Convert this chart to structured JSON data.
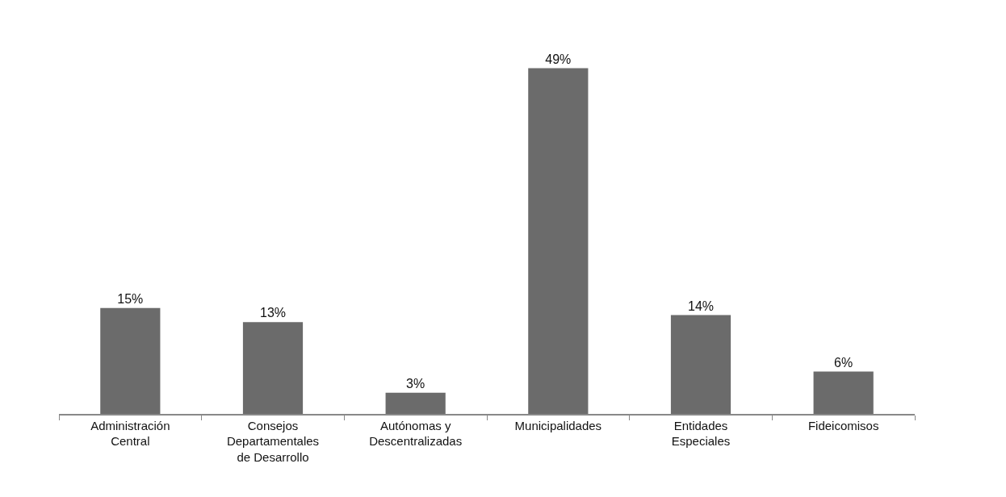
{
  "chart_data": {
    "type": "bar",
    "categories": [
      "Administración Central",
      "Consejos Departamentales de Desarrollo",
      "Autónomas y Descentralizadas",
      "Municipalidades",
      "Entidades Especiales",
      "Fideicomisos"
    ],
    "values": [
      15,
      13,
      3,
      49,
      14,
      6
    ],
    "value_labels": [
      "15%",
      "13%",
      "3%",
      "49%",
      "14%",
      "6%"
    ],
    "color": "#6b6b6b"
  }
}
